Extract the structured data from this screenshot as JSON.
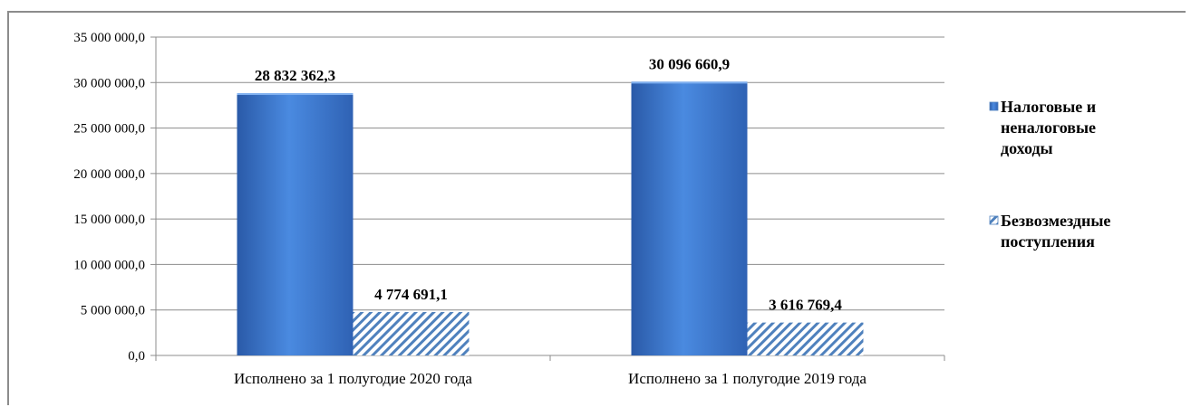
{
  "chart_data": {
    "type": "bar",
    "categories": [
      "Исполнено за 1 полугодие 2020 года",
      "Исполнено за 1 полугодие 2019 года"
    ],
    "series": [
      {
        "name": "Налоговые и неналоговые доходы",
        "values": [
          28832362.3,
          30096660.9
        ],
        "data_labels": [
          "28 832 362,3",
          "30 096 660,9"
        ],
        "color": "#3c78d0"
      },
      {
        "name": "Безвозмездные поступления",
        "values": [
          4774691.1,
          3616769.4
        ],
        "data_labels": [
          "4 774 691,1",
          "3 616 769,4"
        ],
        "color": "#4f81bd",
        "pattern": "diagonal-hatch"
      }
    ],
    "ylim": [
      0,
      35000000
    ],
    "yticks": [
      0,
      5000000,
      10000000,
      15000000,
      20000000,
      25000000,
      30000000,
      35000000
    ],
    "ytick_labels": [
      "0,0",
      "5 000 000,0",
      "10 000 000,0",
      "15 000 000,0",
      "20 000 000,0",
      "25 000 000,0",
      "30 000 000,0",
      "35 000 000,0"
    ],
    "grid": true,
    "legend_position": "right",
    "legend_lines": [
      [
        "Налоговые и",
        "неналоговые",
        "доходы"
      ],
      [
        "Безвозмездные",
        "поступления"
      ]
    ]
  }
}
